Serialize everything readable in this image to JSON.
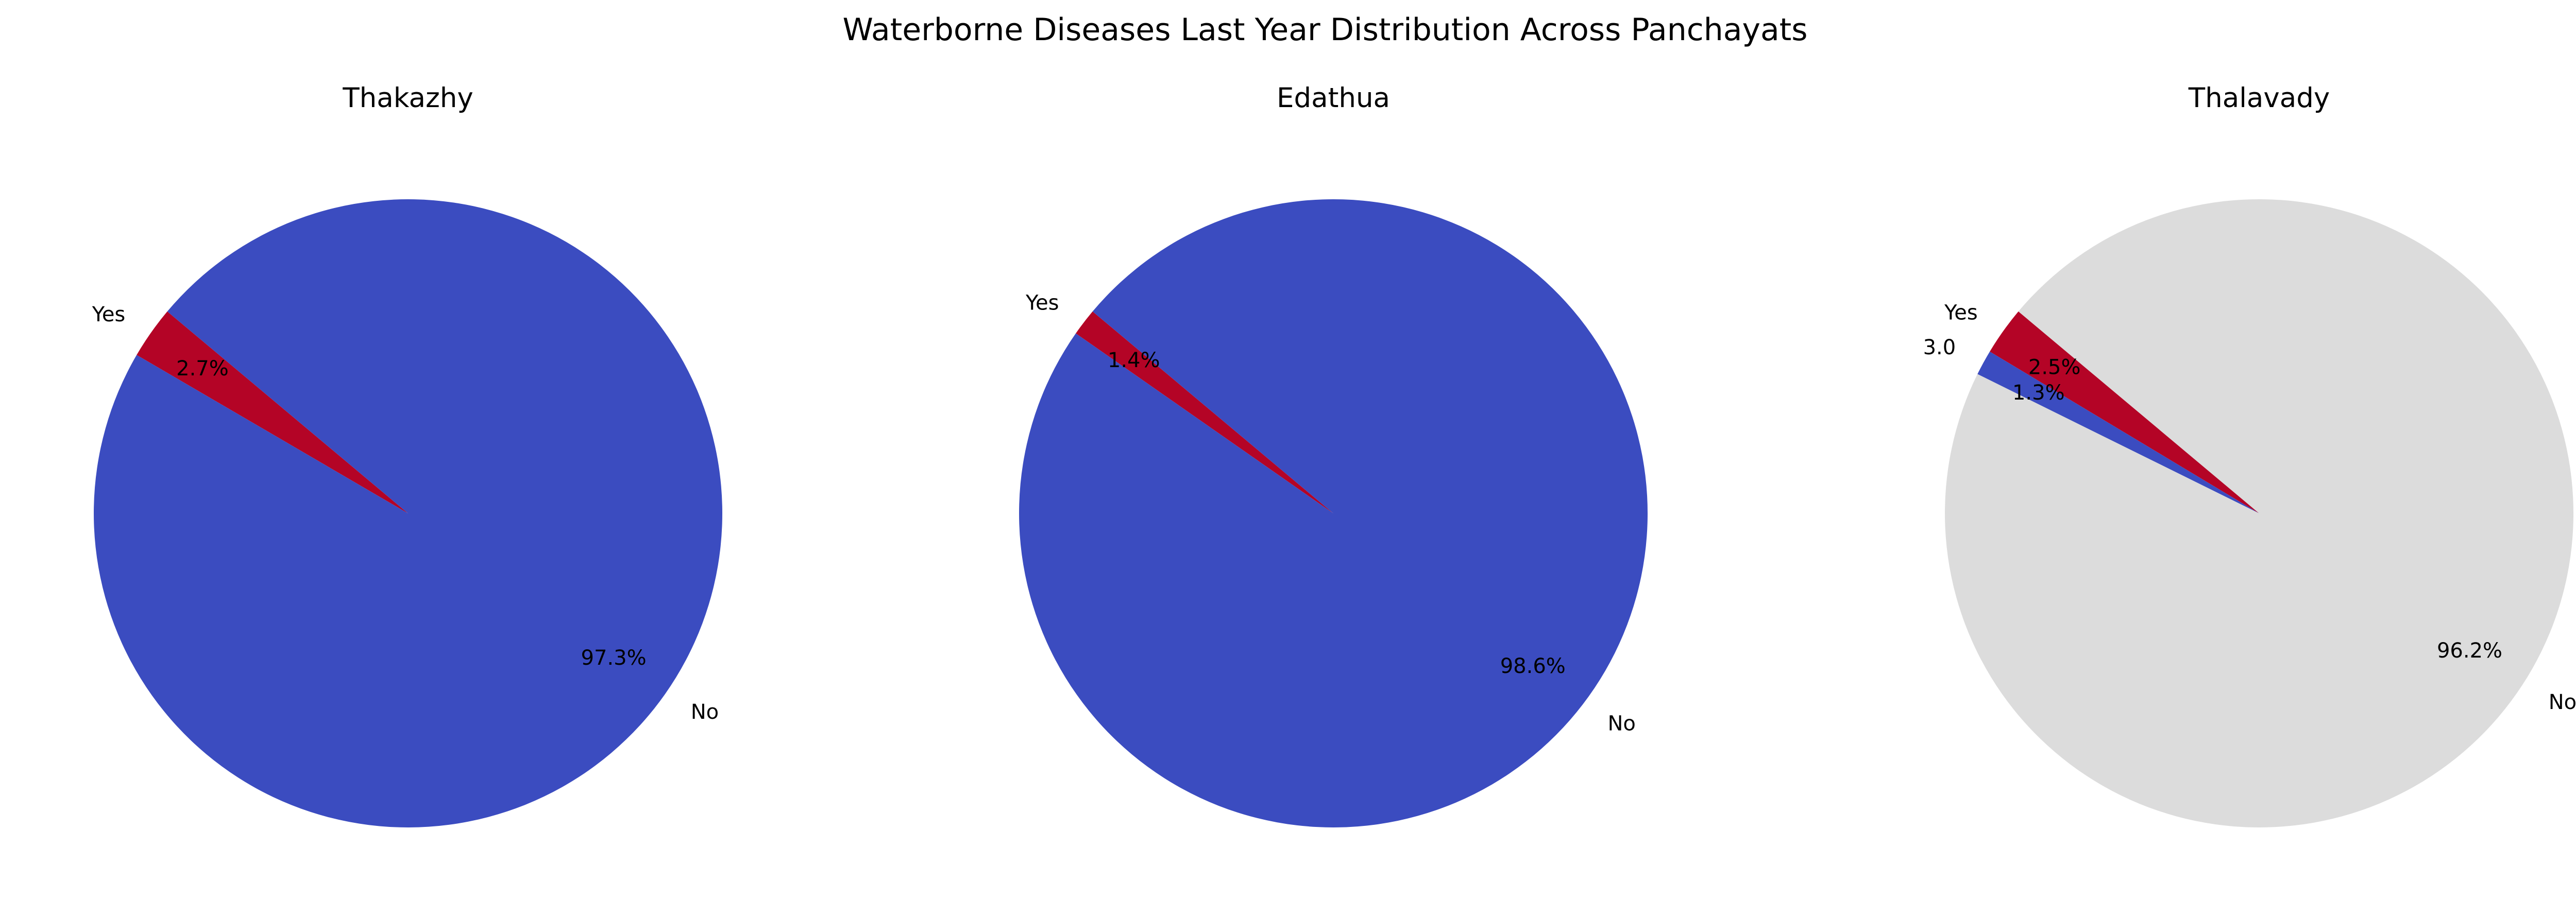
{
  "chart_data": {
    "type": "pie",
    "title": "Waterborne Diseases Last Year Distribution Across Panchayats",
    "start_angle_deg": 140,
    "counterclockwise": true,
    "colors": {
      "No": "#3b4cc0",
      "Yes": "#b40426",
      "3.0": "#3b4cc0",
      "No_thalavady": "#dcdcdc"
    },
    "charts": [
      {
        "title": "Thakazhy",
        "slices": [
          {
            "label": "Yes",
            "value": 2.7,
            "pct_label": "2.7%",
            "color": "#b40426"
          },
          {
            "label": "No",
            "value": 97.3,
            "pct_label": "97.3%",
            "color": "#3b4cc0"
          }
        ]
      },
      {
        "title": "Edathua",
        "slices": [
          {
            "label": "Yes",
            "value": 1.4,
            "pct_label": "1.4%",
            "color": "#b40426"
          },
          {
            "label": "No",
            "value": 98.6,
            "pct_label": "98.6%",
            "color": "#3b4cc0"
          }
        ]
      },
      {
        "title": "Thalavady",
        "slices": [
          {
            "label": "Yes",
            "value": 2.5,
            "pct_label": "2.5%",
            "color": "#b40426"
          },
          {
            "label": "3.0",
            "value": 1.3,
            "pct_label": "1.3%",
            "color": "#3b4cc0"
          },
          {
            "label": "No",
            "value": 96.2,
            "pct_label": "96.2%",
            "color": "#dcdcdc"
          }
        ]
      }
    ]
  }
}
